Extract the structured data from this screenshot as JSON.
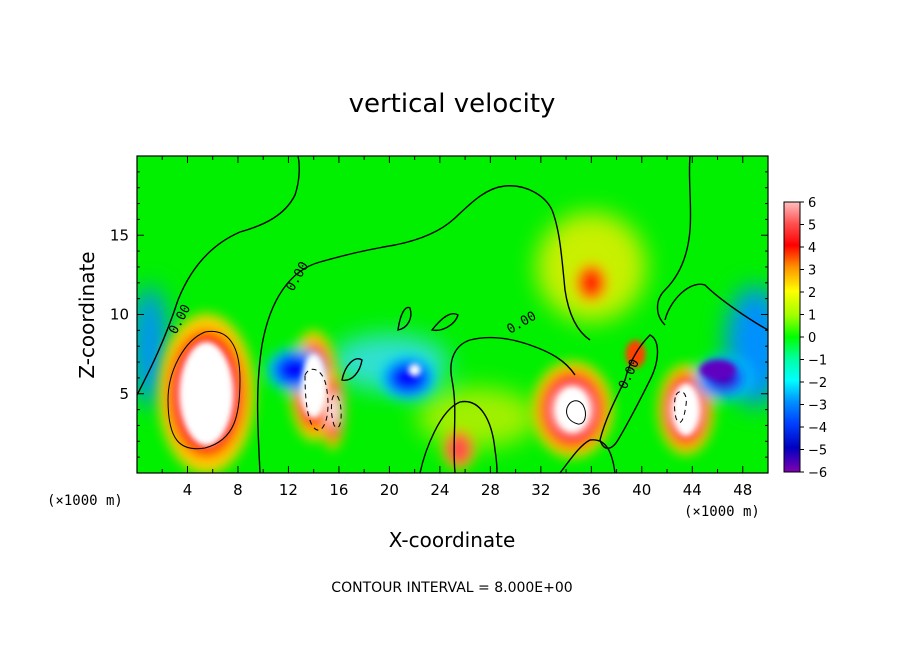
{
  "chart_data": {
    "type": "heatmap",
    "title": "vertical velocity",
    "xlabel": "X-coordinate",
    "ylabel": "Z-coordinate",
    "x_unit": "(×1000 m)",
    "xlim": [
      0,
      50
    ],
    "ylim": [
      0,
      20
    ],
    "x_ticks": [
      4,
      8,
      12,
      16,
      20,
      24,
      28,
      32,
      36,
      40,
      44,
      48
    ],
    "y_ticks": [
      5,
      10,
      15
    ],
    "colorbar": {
      "min": -6,
      "max": 6,
      "labels": [
        "6",
        "5",
        "4",
        "3",
        "2",
        "1",
        "0",
        "−1",
        "−2",
        "−3",
        "−4",
        "−5",
        "−6"
      ],
      "colors": [
        "#ffc0c0",
        "#ff8080",
        "#ff3030",
        "#ff0000",
        "#ff8000",
        "#ffd000",
        "#ffff00",
        "#c0ff00",
        "#60ff00",
        "#00ff00",
        "#00ffa0",
        "#00ffff",
        "#00c0ff",
        "#0080ff",
        "#0040ff",
        "#0000ff",
        "#0000c0",
        "#6000c0",
        "#8000a0"
      ]
    },
    "contour_labels": [
      "0.00",
      "0.00",
      "0.00",
      "0.00",
      "0.00"
    ],
    "footer": "CONTOUR INTERVAL = 8.000E+00",
    "features": [
      {
        "x": 5.5,
        "z": 5.0,
        "sign": "up",
        "peak": 8
      },
      {
        "x": 14.0,
        "z": 5.5,
        "sign": "up",
        "peak": 8
      },
      {
        "x": 15.5,
        "z": 4.0,
        "sign": "up",
        "peak": 6
      },
      {
        "x": 34.5,
        "z": 4.0,
        "sign": "up",
        "peak": 8
      },
      {
        "x": 43.5,
        "z": 4.0,
        "sign": "up",
        "peak": 8
      },
      {
        "x": 12.5,
        "z": 6.5,
        "sign": "down",
        "peak": -5
      },
      {
        "x": 21.5,
        "z": 6.0,
        "sign": "down",
        "peak": -5
      },
      {
        "x": 46.5,
        "z": 6.0,
        "sign": "down",
        "peak": -6
      },
      {
        "x": 25.5,
        "z": 1.5,
        "sign": "up",
        "peak": 4
      },
      {
        "x": 36.0,
        "z": 12.0,
        "sign": "up",
        "peak": 2
      }
    ]
  }
}
